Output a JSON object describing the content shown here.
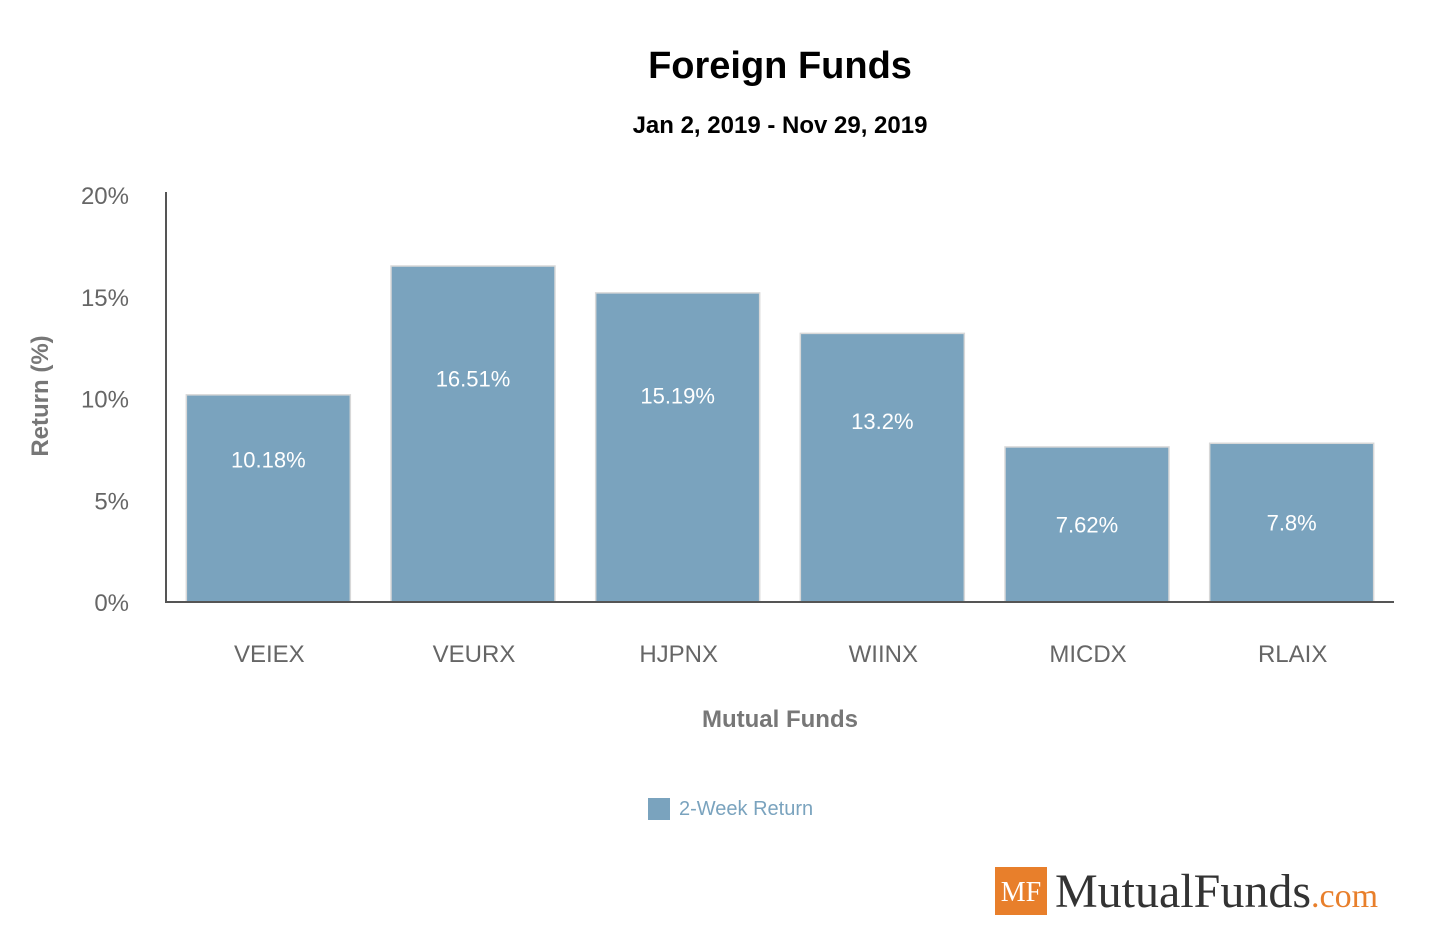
{
  "chart_data": {
    "type": "bar",
    "title": "Foreign Funds",
    "subtitle": "Jan 2, 2019 - Nov 29, 2019",
    "xlabel": "Mutual Funds",
    "ylabel": "Return (%)",
    "categories": [
      "VEIEX",
      "VEURX",
      "HJPNX",
      "WIINX",
      "MICDX",
      "RLAIX"
    ],
    "series": [
      {
        "name": "2-Week Return",
        "values": [
          10.18,
          16.51,
          15.19,
          13.2,
          7.62,
          7.8
        ],
        "labels": [
          "10.18%",
          "16.51%",
          "15.19%",
          "13.2%",
          "7.62%",
          "7.8%"
        ],
        "color": "#7aa3be"
      }
    ],
    "ylim": [
      0,
      20
    ],
    "yticks": [
      0,
      5,
      10,
      15,
      20
    ],
    "ytick_labels": [
      "0%",
      "5%",
      "10%",
      "15%",
      "20%"
    ],
    "grid": false,
    "legend_position": "bottom"
  },
  "branding": {
    "logo_badge": "MF",
    "name": "MutualFunds",
    "suffix": ".com",
    "badge_color": "#e87f2b"
  }
}
